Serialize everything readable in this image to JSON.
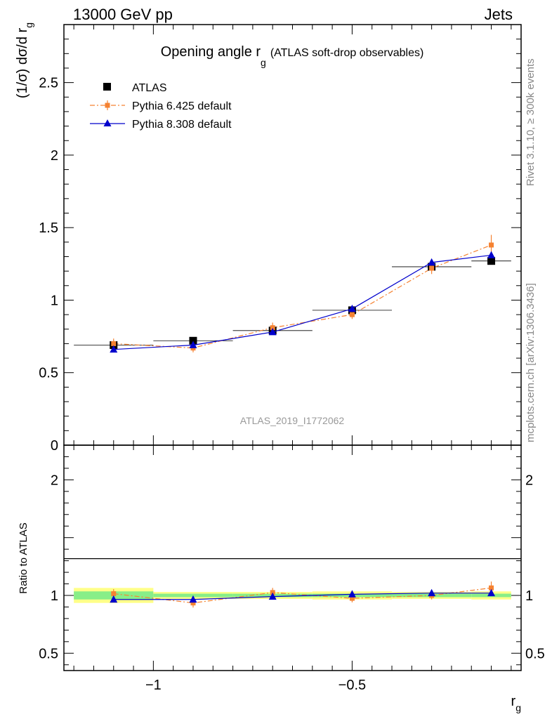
{
  "header": {
    "left": "13000 GeV pp",
    "right": "Jets"
  },
  "side_texts": {
    "rivet": "Rivet 3.1.10, ≥ 300k events",
    "mcplots": "mcplots.cern.ch [arXiv:1306.3436]"
  },
  "colors": {
    "atlas": "#000000",
    "pythia6": "#f58231",
    "pythia8": "#0000cc",
    "band_inner": "#88ee88",
    "band_outer": "#ffff88",
    "watermark": "#999999",
    "side_text": "#888888"
  },
  "chart_data": [
    {
      "type": "line",
      "title_main": "Opening angle r",
      "title_sub": "g",
      "title_suffix": "(ATLAS soft-drop observables)",
      "ylabel_main": "(1/σ) dσ/d r",
      "ylabel_sub": "g",
      "watermark": "ATLAS_2019_I1772062",
      "xlim": [
        -1.225,
        -0.075
      ],
      "ylim": [
        0,
        2.9
      ],
      "yticks": [
        {
          "value": 0,
          "label": "0"
        },
        {
          "value": 0.5,
          "label": "0.5"
        },
        {
          "value": 1,
          "label": "1"
        },
        {
          "value": 1.5,
          "label": "1.5"
        },
        {
          "value": 2,
          "label": "2"
        },
        {
          "value": 2.5,
          "label": "2.5"
        }
      ],
      "legend_position": "top-left",
      "series": [
        {
          "name": "ATLAS",
          "marker": "square",
          "x": [
            -1.1,
            -0.9,
            -0.7,
            -0.5,
            -0.3,
            -0.15
          ],
          "y": [
            0.69,
            0.72,
            0.79,
            0.93,
            1.23,
            1.27
          ],
          "xerr": [
            [
              -1.2,
              -1.0
            ],
            [
              -1.0,
              -0.8
            ],
            [
              -0.8,
              -0.6
            ],
            [
              -0.6,
              -0.4
            ],
            [
              -0.4,
              -0.2
            ],
            [
              -0.2,
              -0.1
            ]
          ]
        },
        {
          "name": "Pythia 6.425 default",
          "marker": "square-small",
          "linestyle": "dashdot",
          "x": [
            -1.1,
            -0.9,
            -0.7,
            -0.5,
            -0.3,
            -0.15
          ],
          "y": [
            0.7,
            0.67,
            0.81,
            0.9,
            1.22,
            1.38
          ],
          "yerr": [
            0.035,
            0.03,
            0.035,
            0.03,
            0.04,
            0.07
          ]
        },
        {
          "name": "Pythia 8.308 default",
          "marker": "triangle",
          "linestyle": "solid",
          "x": [
            -1.1,
            -0.9,
            -0.7,
            -0.5,
            -0.3,
            -0.15
          ],
          "y": [
            0.66,
            0.69,
            0.78,
            0.94,
            1.26,
            1.31
          ],
          "yerr": [
            0.01,
            0.01,
            0.01,
            0.01,
            0.01,
            0.01
          ]
        }
      ]
    },
    {
      "type": "line",
      "ylabel": "Ratio to ATLAS",
      "xlabel_main": "r",
      "xlabel_sub": "g",
      "xlim": [
        -1.225,
        -0.075
      ],
      "ylim": [
        0.35,
        2.3
      ],
      "yticks": [
        {
          "value": 0.5,
          "label": "0.5"
        },
        {
          "value": 1,
          "label": "1"
        },
        {
          "value": 2,
          "label": "2"
        }
      ],
      "xticks": [
        {
          "value": -1,
          "label": "−1"
        },
        {
          "value": -0.5,
          "label": "−0.5"
        }
      ],
      "bands": [
        {
          "x": [
            -1.2,
            -1.0
          ],
          "inner": [
            0.965,
            1.035
          ],
          "outer": [
            0.935,
            1.065
          ]
        },
        {
          "x": [
            -1.0,
            -0.8
          ],
          "inner": [
            0.985,
            1.015
          ],
          "outer": [
            0.97,
            1.03
          ]
        },
        {
          "x": [
            -0.8,
            -0.6
          ],
          "inner": [
            0.985,
            1.015
          ],
          "outer": [
            0.97,
            1.03
          ]
        },
        {
          "x": [
            -0.6,
            -0.4
          ],
          "inner": [
            0.985,
            1.015
          ],
          "outer": [
            0.965,
            1.035
          ]
        },
        {
          "x": [
            -0.4,
            -0.2
          ],
          "inner": [
            0.985,
            1.015
          ],
          "outer": [
            0.97,
            1.03
          ]
        },
        {
          "x": [
            -0.2,
            -0.1
          ],
          "inner": [
            0.985,
            1.015
          ],
          "outer": [
            0.965,
            1.035
          ]
        }
      ],
      "series": [
        {
          "name": "Pythia 6.425 default",
          "x": [
            -1.1,
            -0.9,
            -0.7,
            -0.5,
            -0.3,
            -0.15
          ],
          "y": [
            1.015,
            0.935,
            1.025,
            0.975,
            1.0,
            1.065
          ],
          "yerr": [
            0.04,
            0.04,
            0.04,
            0.035,
            0.035,
            0.055
          ]
        },
        {
          "name": "Pythia 8.308 default",
          "x": [
            -1.1,
            -0.9,
            -0.7,
            -0.5,
            -0.3,
            -0.15
          ],
          "y": [
            0.965,
            0.965,
            0.99,
            1.01,
            1.02,
            1.02
          ],
          "yerr": [
            0.01,
            0.01,
            0.01,
            0.01,
            0.01,
            0.01
          ]
        }
      ]
    }
  ]
}
